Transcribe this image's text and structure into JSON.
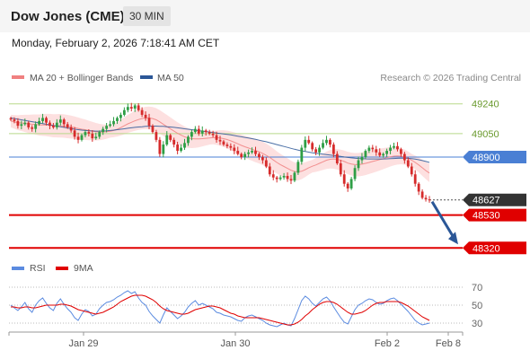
{
  "header": {
    "title": "Dow Jones (CME)",
    "timeframe": "30 MIN",
    "datetime": "Monday, February 2, 2026 7:18:41 AM CET"
  },
  "legend": {
    "ma20_label": "MA 20 + Bollinger Bands",
    "ma50_label": "MA 50",
    "credit": "Research © 2026 Trading Central",
    "rsi_label": "RSI",
    "ma9_label": "9MA"
  },
  "colors": {
    "ma20": "#f08080",
    "ma50": "#2b5797",
    "bollinger_fill": "#fde0e0",
    "resistance": "#b8d98a",
    "pivot": "#4a7fd4",
    "support": "#e00000",
    "last_price": "#333333",
    "candle_up": "#2e9e45",
    "candle_down": "#d62b2b",
    "rsi": "#5b8be0",
    "rsi_ma": "#e00000",
    "arrow": "#2b5797"
  },
  "chart_data": [
    {
      "type": "candlestick",
      "title": "",
      "x_ticks": [
        "Jan 29",
        "Jan 30",
        "Feb 2",
        "Feb 8"
      ],
      "ylim": [
        48270,
        49330
      ],
      "levels": [
        {
          "value": 49240,
          "label": "49240",
          "kind": "resistance"
        },
        {
          "value": 49050,
          "label": "49050",
          "kind": "resistance"
        },
        {
          "value": 48900,
          "label": "48900",
          "kind": "pivot"
        },
        {
          "value": 48627,
          "label": "48627",
          "kind": "last"
        },
        {
          "value": 48530,
          "label": "48530",
          "kind": "support"
        },
        {
          "value": 48320,
          "label": "48320",
          "kind": "support"
        }
      ],
      "close": [
        49140,
        49130,
        49100,
        49110,
        49120,
        49090,
        49080,
        49110,
        49130,
        49150,
        49120,
        49100,
        49090,
        49120,
        49140,
        49110,
        49090,
        49070,
        49030,
        49010,
        49040,
        49060,
        49050,
        49020,
        49030,
        49060,
        49080,
        49100,
        49110,
        49130,
        49150,
        49170,
        49200,
        49220,
        49210,
        49230,
        49200,
        49170,
        49150,
        49100,
        49060,
        49010,
        48920,
        48980,
        49040,
        49010,
        48980,
        48940,
        48960,
        48990,
        49030,
        49060,
        49080,
        49050,
        49070,
        49060,
        49050,
        49040,
        49010,
        49000,
        48980,
        48970,
        48960,
        48940,
        48920,
        48900,
        48920,
        48930,
        48940,
        48920,
        48900,
        48880,
        48840,
        48790,
        48770,
        48760,
        48770,
        48780,
        48760,
        48750,
        48800,
        48870,
        48960,
        49010,
        48990,
        48950,
        48930,
        48960,
        48990,
        49010,
        48980,
        48920,
        48860,
        48790,
        48730,
        48700,
        48760,
        48830,
        48880,
        48900,
        48940,
        48960,
        48950,
        48930,
        48910,
        48920,
        48940,
        48960,
        48970,
        48950,
        48920,
        48880,
        48840,
        48790,
        48730,
        48680,
        48640,
        48630,
        48627
      ],
      "series": [
        {
          "name": "MA 20 + Bollinger Bands",
          "values": [
            49130,
            49125,
            49120,
            49118,
            49115,
            49112,
            49110,
            49108,
            49105,
            49105,
            49105,
            49103,
            49100,
            49100,
            49100,
            49098,
            49095,
            49092,
            49088,
            49083,
            49078,
            49075,
            49070,
            49066,
            49062,
            49060,
            49060,
            49062,
            49065,
            49070,
            49078,
            49088,
            49100,
            49112,
            49122,
            49132,
            49140,
            49146,
            49150,
            49150,
            49146,
            49138,
            49125,
            49110,
            49095,
            49080,
            49066,
            49052,
            49040,
            49030,
            49022,
            49018,
            49016,
            49016,
            49018,
            49020,
            49022,
            49024,
            49024,
            49022,
            49018,
            49012,
            49004,
            48995,
            48985,
            48975,
            48966,
            48958,
            48950,
            48942,
            48934,
            48924,
            48912,
            48898,
            48882,
            48866,
            48852,
            48840,
            48828,
            48816,
            48808,
            48806,
            48810,
            48820,
            48832,
            48842,
            48850,
            48860,
            48870,
            48880,
            48886,
            48888,
            48886,
            48880,
            48872,
            48862,
            48856,
            48852,
            48852,
            48855,
            48860,
            48866,
            48872,
            48878,
            48884,
            48890,
            48896,
            48902,
            48906,
            48908,
            48906,
            48900,
            48892,
            48880,
            48866,
            48850,
            48832,
            48814,
            48798
          ]
        },
        {
          "name": "MA 50",
          "values": [
            49150,
            49146,
            49142,
            49138,
            49134,
            49130,
            49126,
            49122,
            49118,
            49114,
            49110,
            49106,
            49102,
            49098,
            49094,
            49090,
            49086,
            49082,
            49078,
            49075,
            49072,
            49070,
            49068,
            49067,
            49066,
            49066,
            49067,
            49068,
            49070,
            49072,
            49075,
            49078,
            49081,
            49084,
            49087,
            49090,
            49092,
            49094,
            49096,
            49097,
            49098,
            49098,
            49097,
            49096,
            49094,
            49092,
            49090,
            49087,
            49084,
            49081,
            49078,
            49075,
            49072,
            49069,
            49066,
            49063,
            49060,
            49057,
            49054,
            49051,
            49048,
            49045,
            49042,
            49038,
            49034,
            49030,
            49026,
            49022,
            49018,
            49013,
            49008,
            49003,
            48998,
            48992,
            48986,
            48980,
            48974,
            48968,
            48962,
            48956,
            48950,
            48945,
            48940,
            48936,
            48932,
            48928,
            48925,
            48922,
            48919,
            48916,
            48913,
            48910,
            48907,
            48904,
            48901,
            48898,
            48895,
            48893,
            48891,
            48890,
            48889,
            48888,
            48888,
            48888,
            48888,
            48888,
            48889,
            48890,
            48891,
            48892,
            48893,
            48893,
            48892,
            48890,
            48887,
            48883,
            48878,
            48872,
            48866
          ]
        }
      ]
    },
    {
      "type": "line",
      "title": "",
      "ylim": [
        22,
        78
      ],
      "y_ticks": [
        70,
        50,
        30
      ],
      "series": [
        {
          "name": "RSI",
          "values": [
            50,
            47,
            44,
            48,
            53,
            46,
            42,
            50,
            55,
            58,
            52,
            47,
            44,
            52,
            57,
            51,
            46,
            42,
            36,
            33,
            40,
            45,
            43,
            38,
            40,
            46,
            50,
            53,
            54,
            56,
            59,
            61,
            64,
            66,
            63,
            65,
            58,
            53,
            50,
            43,
            38,
            34,
            30,
            39,
            47,
            43,
            39,
            35,
            38,
            42,
            48,
            52,
            55,
            50,
            52,
            50,
            48,
            46,
            42,
            41,
            39,
            38,
            37,
            35,
            33,
            32,
            36,
            38,
            39,
            37,
            35,
            33,
            30,
            28,
            27,
            26,
            28,
            30,
            28,
            27,
            35,
            45,
            55,
            60,
            57,
            52,
            49,
            53,
            57,
            59,
            55,
            48,
            42,
            36,
            31,
            29,
            37,
            45,
            50,
            52,
            55,
            57,
            56,
            53,
            51,
            52,
            55,
            57,
            58,
            55,
            51,
            47,
            43,
            38,
            33,
            30,
            28,
            29,
            30
          ]
        },
        {
          "name": "9MA",
          "values": [
            48,
            48,
            47,
            47,
            48,
            48,
            47,
            47,
            48,
            49,
            50,
            50,
            50,
            50,
            51,
            51,
            50,
            49,
            47,
            45,
            44,
            43,
            42,
            41,
            40,
            41,
            42,
            44,
            46,
            48,
            51,
            54,
            56,
            58,
            60,
            61,
            61,
            61,
            60,
            58,
            56,
            53,
            49,
            46,
            44,
            43,
            42,
            41,
            40,
            40,
            41,
            43,
            45,
            46,
            47,
            48,
            49,
            49,
            48,
            47,
            45,
            43,
            41,
            40,
            38,
            37,
            36,
            36,
            36,
            36,
            36,
            35,
            34,
            33,
            32,
            31,
            30,
            29,
            28,
            28,
            29,
            31,
            34,
            38,
            41,
            45,
            48,
            51,
            53,
            54,
            54,
            53,
            51,
            48,
            45,
            42,
            40,
            40,
            41,
            42,
            44,
            47,
            50,
            52,
            53,
            53,
            54,
            54,
            54,
            54,
            53,
            51,
            49,
            46,
            43,
            40,
            37,
            35,
            33
          ]
        }
      ]
    }
  ]
}
